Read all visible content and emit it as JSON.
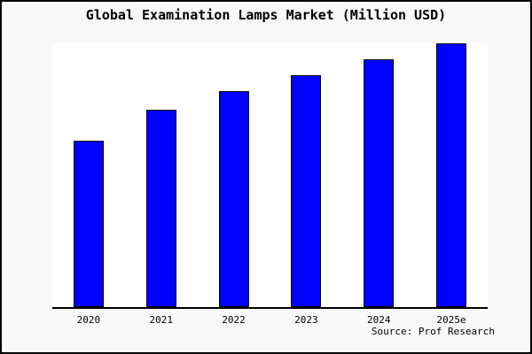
{
  "figure": {
    "background_color": "#f8f8f8",
    "border_color": "#000000",
    "plot_background_color": "#ffffff",
    "source_label": "Source: Prof Research"
  },
  "chart_data": {
    "type": "bar",
    "title": "Global Examination Lamps Market (Million USD)",
    "categories": [
      "2020",
      "2021",
      "2022",
      "2023",
      "2024",
      "2025e"
    ],
    "values": [
      63,
      75,
      82,
      88,
      94,
      100
    ],
    "value_scale": "relative bar height as % of tallest bar; no y-axis tick labels shown in chart",
    "xlabel": "",
    "ylabel": "",
    "ylim": [
      0,
      100
    ],
    "grid": false,
    "legend": null,
    "bar_color": "#0000ff",
    "bar_edge_color": "#000000",
    "annotations": [
      "Source: Prof Research"
    ]
  }
}
